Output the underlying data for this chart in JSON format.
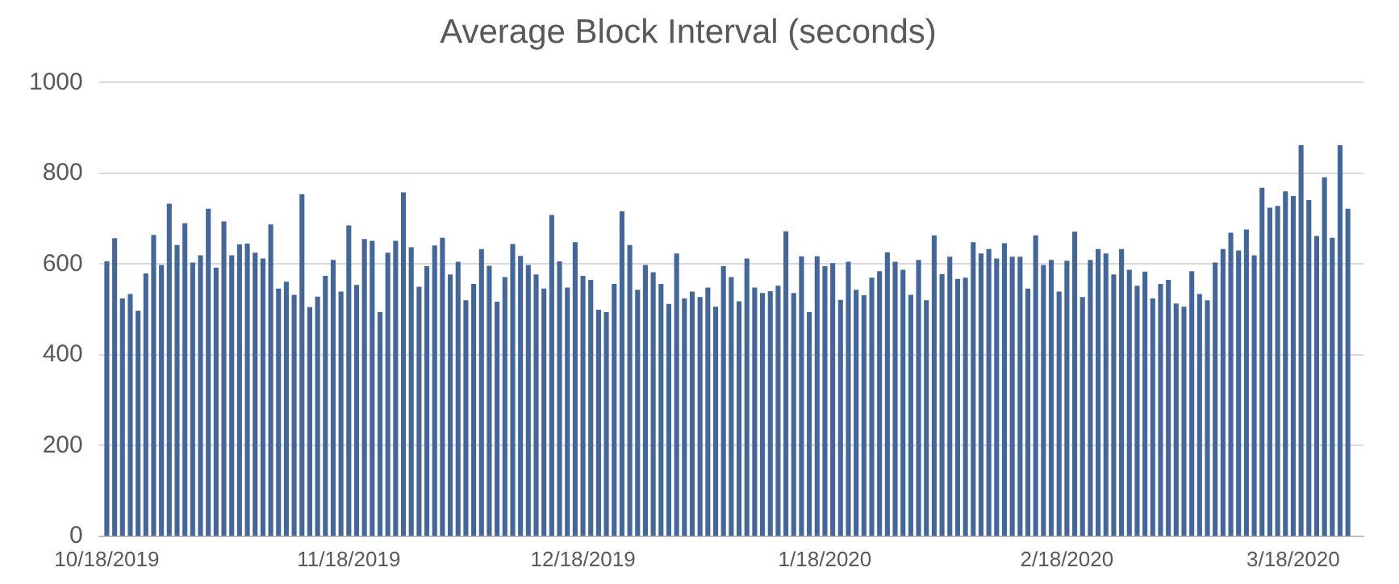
{
  "chart_data": {
    "type": "bar",
    "title": "Average Block Interval (seconds)",
    "x": [
      "2019-10-18",
      "2019-10-19",
      "2019-10-20",
      "2019-10-21",
      "2019-10-22",
      "2019-10-23",
      "2019-10-24",
      "2019-10-25",
      "2019-10-26",
      "2019-10-27",
      "2019-10-28",
      "2019-10-29",
      "2019-10-30",
      "2019-10-31",
      "2019-11-01",
      "2019-11-02",
      "2019-11-03",
      "2019-11-04",
      "2019-11-05",
      "2019-11-06",
      "2019-11-07",
      "2019-11-08",
      "2019-11-09",
      "2019-11-10",
      "2019-11-11",
      "2019-11-12",
      "2019-11-13",
      "2019-11-14",
      "2019-11-15",
      "2019-11-16",
      "2019-11-17",
      "2019-11-18",
      "2019-11-19",
      "2019-11-20",
      "2019-11-21",
      "2019-11-22",
      "2019-11-23",
      "2019-11-24",
      "2019-11-25",
      "2019-11-26",
      "2019-11-27",
      "2019-11-28",
      "2019-11-29",
      "2019-11-30",
      "2019-12-01",
      "2019-12-02",
      "2019-12-03",
      "2019-12-04",
      "2019-12-05",
      "2019-12-06",
      "2019-12-07",
      "2019-12-08",
      "2019-12-09",
      "2019-12-10",
      "2019-12-11",
      "2019-12-12",
      "2019-12-13",
      "2019-12-14",
      "2019-12-15",
      "2019-12-16",
      "2019-12-17",
      "2019-12-18",
      "2019-12-19",
      "2019-12-20",
      "2019-12-21",
      "2019-12-22",
      "2019-12-23",
      "2019-12-24",
      "2019-12-25",
      "2019-12-26",
      "2019-12-27",
      "2019-12-28",
      "2019-12-29",
      "2019-12-30",
      "2019-12-31",
      "2020-01-01",
      "2020-01-02",
      "2020-01-03",
      "2020-01-04",
      "2020-01-05",
      "2020-01-06",
      "2020-01-07",
      "2020-01-08",
      "2020-01-09",
      "2020-01-10",
      "2020-01-11",
      "2020-01-12",
      "2020-01-13",
      "2020-01-14",
      "2020-01-15",
      "2020-01-16",
      "2020-01-17",
      "2020-01-18",
      "2020-01-19",
      "2020-01-20",
      "2020-01-21",
      "2020-01-22",
      "2020-01-23",
      "2020-01-24",
      "2020-01-25",
      "2020-01-26",
      "2020-01-27",
      "2020-01-28",
      "2020-01-29",
      "2020-01-30",
      "2020-01-31",
      "2020-02-01",
      "2020-02-02",
      "2020-02-03",
      "2020-02-04",
      "2020-02-05",
      "2020-02-06",
      "2020-02-07",
      "2020-02-08",
      "2020-02-09",
      "2020-02-10",
      "2020-02-11",
      "2020-02-12",
      "2020-02-13",
      "2020-02-14",
      "2020-02-15",
      "2020-02-16",
      "2020-02-17",
      "2020-02-18",
      "2020-02-19",
      "2020-02-20",
      "2020-02-21",
      "2020-02-22",
      "2020-02-23",
      "2020-02-24",
      "2020-02-25",
      "2020-02-26",
      "2020-02-27",
      "2020-02-28",
      "2020-02-29",
      "2020-03-01",
      "2020-03-02",
      "2020-03-03",
      "2020-03-04",
      "2020-03-05",
      "2020-03-06",
      "2020-03-07",
      "2020-03-08",
      "2020-03-09",
      "2020-03-10",
      "2020-03-11",
      "2020-03-12",
      "2020-03-13",
      "2020-03-14",
      "2020-03-15",
      "2020-03-16",
      "2020-03-17",
      "2020-03-18",
      "2020-03-19",
      "2020-03-20",
      "2020-03-21",
      "2020-03-22",
      "2020-03-23",
      "2020-03-24",
      "2020-03-25"
    ],
    "values": [
      605,
      656,
      523,
      533,
      496,
      578,
      663,
      597,
      732,
      641,
      689,
      602,
      618,
      721,
      591,
      693,
      618,
      642,
      644,
      624,
      611,
      686,
      545,
      560,
      531,
      753,
      504,
      527,
      573,
      608,
      538,
      684,
      553,
      654,
      650,
      493,
      624,
      650,
      757,
      636,
      549,
      594,
      640,
      657,
      576,
      604,
      519,
      555,
      632,
      595,
      516,
      570,
      643,
      617,
      597,
      576,
      545,
      707,
      605,
      547,
      647,
      573,
      564,
      498,
      493,
      555,
      715,
      641,
      542,
      597,
      581,
      555,
      511,
      622,
      523,
      538,
      526,
      547,
      505,
      594,
      570,
      517,
      611,
      547,
      535,
      539,
      551,
      671,
      535,
      616,
      493,
      616,
      594,
      601,
      520,
      604,
      542,
      530,
      569,
      583,
      625,
      604,
      586,
      531,
      608,
      519,
      662,
      577,
      615,
      566,
      569,
      647,
      622,
      632,
      611,
      645,
      615,
      615,
      545,
      662,
      597,
      608,
      538,
      606,
      670,
      526,
      608,
      632,
      622,
      576,
      632,
      586,
      551,
      582,
      523,
      555,
      564,
      512,
      505,
      583,
      533,
      519,
      602,
      632,
      668,
      629,
      675,
      618,
      767,
      723,
      727,
      759,
      749,
      861,
      740,
      661,
      790,
      657,
      861,
      721
    ],
    "color": "#44679b",
    "xlim": [
      "2019-10-17",
      "2020-03-27"
    ],
    "xticks": [
      {
        "value": "2019-10-18",
        "label": "10/18/2019"
      },
      {
        "value": "2019-11-18",
        "label": "11/18/2019"
      },
      {
        "value": "2019-12-18",
        "label": "12/18/2019"
      },
      {
        "value": "2020-01-18",
        "label": "1/18/2020"
      },
      {
        "value": "2020-02-18",
        "label": "2/18/2020"
      },
      {
        "value": "2020-03-18",
        "label": "3/18/2020"
      }
    ],
    "ylim": [
      0,
      1000
    ],
    "yticks": [
      0,
      200,
      400,
      600,
      800,
      1000
    ],
    "grid": "y",
    "legend": false
  }
}
